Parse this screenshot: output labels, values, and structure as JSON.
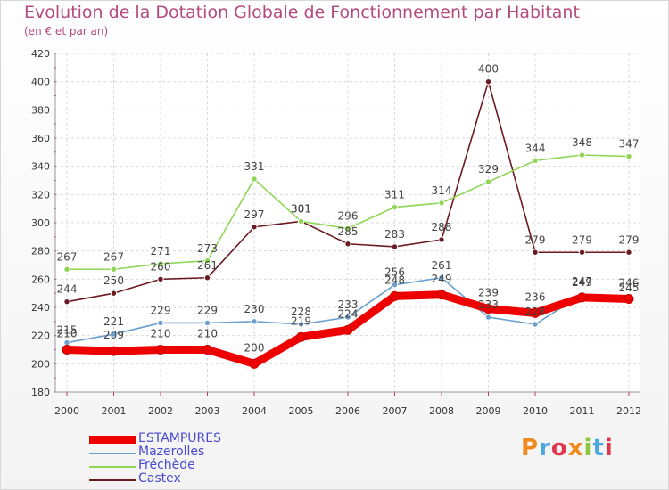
{
  "header": {
    "title": "Evolution de la Dotation Globale de Fonctionnement par Habitant",
    "subtitle": "(en € et par an)"
  },
  "logo": {
    "text": "Proxiti",
    "colors": [
      "#f08a1c",
      "#4aa8e0",
      "#e2354b",
      "#f08a1c",
      "#8cc63e",
      "#4aa8e0",
      "#e2354b"
    ]
  },
  "chart_data": {
    "type": "line",
    "title": "Evolution de la Dotation Globale de Fonctionnement par Habitant",
    "subtitle": "(en € et par an)",
    "xlabel": "",
    "ylabel": "",
    "ylim": [
      180,
      420
    ],
    "yticks": [
      180,
      200,
      220,
      240,
      260,
      280,
      300,
      320,
      340,
      360,
      380,
      400,
      420
    ],
    "categories": [
      "2000",
      "2001",
      "2002",
      "2003",
      "2004",
      "2005",
      "2006",
      "2007",
      "2008",
      "2009",
      "2010",
      "2011",
      "2012"
    ],
    "grid": true,
    "legend_position": "bottom-left",
    "series": [
      {
        "name": "Castex",
        "color": "#6b1a22",
        "values": [
          244,
          250,
          260,
          261,
          297,
          301,
          285,
          283,
          288,
          400,
          279,
          279,
          279
        ]
      },
      {
        "name": "Fréchède",
        "color": "#8ed653",
        "values": [
          267,
          267,
          271,
          273,
          331,
          301,
          296,
          311,
          314,
          329,
          344,
          348,
          347
        ]
      },
      {
        "name": "Mazerolles",
        "color": "#6a9fd0",
        "values": [
          215,
          221,
          229,
          229,
          230,
          228,
          233,
          256,
          261,
          233,
          228,
          249,
          245
        ]
      },
      {
        "name": "ESTAMPURES",
        "color": "#ee0000",
        "values": [
          210,
          209,
          210,
          210,
          200,
          219,
          224,
          248,
          249,
          239,
          236,
          247,
          246
        ]
      }
    ]
  }
}
